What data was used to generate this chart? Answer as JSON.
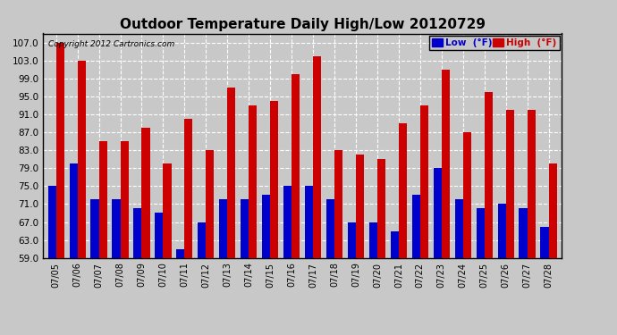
{
  "title": "Outdoor Temperature Daily High/Low 20120729",
  "copyright": "Copyright 2012 Cartronics.com",
  "dates": [
    "07/05",
    "07/06",
    "07/07",
    "07/08",
    "07/09",
    "07/10",
    "07/11",
    "07/12",
    "07/13",
    "07/14",
    "07/15",
    "07/16",
    "07/17",
    "07/18",
    "07/19",
    "07/20",
    "07/21",
    "07/22",
    "07/23",
    "07/24",
    "07/25",
    "07/26",
    "07/27",
    "07/28"
  ],
  "highs": [
    107,
    103,
    85,
    85,
    88,
    80,
    90,
    83,
    97,
    93,
    94,
    100,
    104,
    83,
    82,
    81,
    89,
    93,
    101,
    87,
    96,
    92,
    92,
    80
  ],
  "lows": [
    75,
    80,
    72,
    72,
    70,
    69,
    61,
    67,
    72,
    72,
    73,
    75,
    75,
    72,
    67,
    67,
    65,
    73,
    79,
    72,
    70,
    71,
    70,
    66
  ],
  "ylim_min": 59,
  "ylim_max": 109,
  "yticks": [
    59.0,
    63.0,
    67.0,
    71.0,
    75.0,
    79.0,
    83.0,
    87.0,
    91.0,
    95.0,
    99.0,
    103.0,
    107.0
  ],
  "bar_width": 0.38,
  "low_color": "#0000cc",
  "high_color": "#cc0000",
  "bg_color": "#c8c8c8",
  "plot_bg_color": "#c8c8c8",
  "grid_color": "#ffffff",
  "title_fontsize": 11,
  "legend_low_label": "Low  (°F)",
  "legend_high_label": "High  (°F)"
}
